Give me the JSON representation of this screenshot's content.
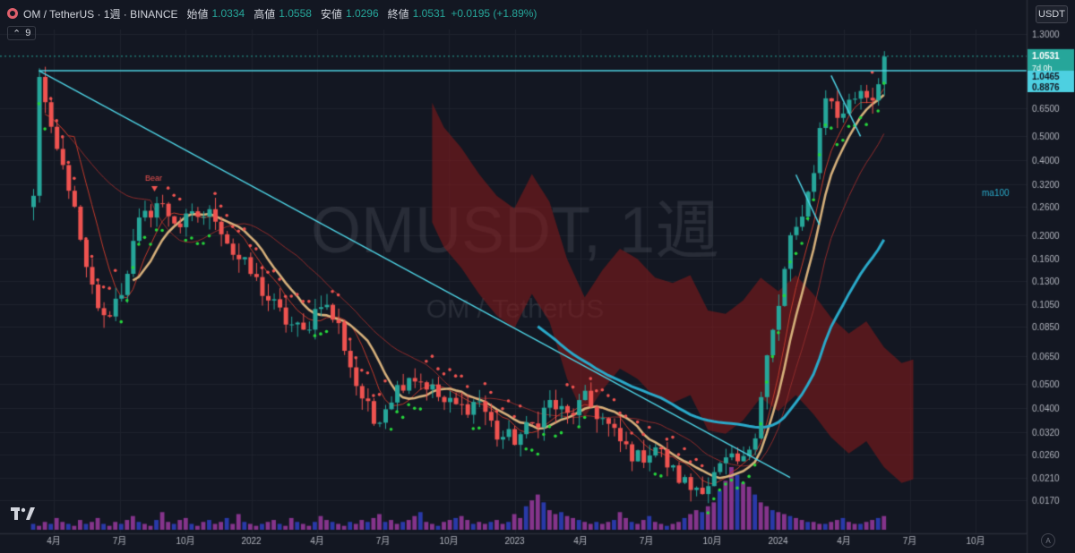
{
  "header": {
    "symbol": "OM / TetherUS · 1週 · BINANCE",
    "open_label": "始値",
    "open": "1.0334",
    "high_label": "高値",
    "high": "1.0558",
    "low_label": "安値",
    "low": "1.0296",
    "close_label": "終値",
    "close": "1.0531",
    "change": "+0.0195 (+1.89%)"
  },
  "indicator_count": "9",
  "currency": "USDT",
  "watermark": {
    "main": "OMUSDT, 1週",
    "sub": "OM / TetherUS"
  },
  "price_labels": {
    "last": "1.0531",
    "countdown": "7d 0h",
    "level1": "1.0465",
    "level2": "0.8876",
    "ma100": "ma100",
    "bear": "Bear"
  },
  "colors": {
    "up": "#26a69a",
    "down": "#ef5350",
    "trendline": "#4dd0e1",
    "psar_down": "#ef5350",
    "psar_up": "#26d53c",
    "cloud": "#8b1a1a",
    "ma_gold": "#d6b07b",
    "ma_teal": "#2aa9c9",
    "volume_blue": "#2e3fbf",
    "volume_purple": "#9a3a9e"
  },
  "chart_data": {
    "type": "candlestick",
    "title": "OMUSDT, 1週",
    "y_scale": "log",
    "ylim": [
      0.015,
      1.35
    ],
    "y_ticks": [
      "1.3000",
      "0.6500",
      "0.5000",
      "0.4000",
      "0.3200",
      "0.2600",
      "0.2000",
      "0.1600",
      "0.1300",
      "0.1050",
      "0.0850",
      "0.0650",
      "0.0500",
      "0.0400",
      "0.0320",
      "0.0260",
      "0.0210",
      "0.0170"
    ],
    "x_ticks": [
      "4月",
      "7月",
      "10月",
      "2022",
      "4月",
      "7月",
      "10月",
      "2023",
      "4月",
      "7月",
      "10月",
      "2024",
      "4月",
      "7月",
      "10月"
    ],
    "path": [
      [
        0,
        0.28
      ],
      [
        1,
        0.9
      ],
      [
        3,
        0.5
      ],
      [
        6,
        0.32
      ],
      [
        9,
        0.14
      ],
      [
        12,
        0.09
      ],
      [
        15,
        0.12
      ],
      [
        18,
        0.22
      ],
      [
        21,
        0.27
      ],
      [
        25,
        0.22
      ],
      [
        28,
        0.24
      ],
      [
        31,
        0.24
      ],
      [
        34,
        0.17
      ],
      [
        37,
        0.14
      ],
      [
        40,
        0.11
      ],
      [
        43,
        0.09
      ],
      [
        46,
        0.08
      ],
      [
        49,
        0.11
      ],
      [
        52,
        0.085
      ],
      [
        55,
        0.05
      ],
      [
        58,
        0.035
      ],
      [
        61,
        0.045
      ],
      [
        64,
        0.055
      ],
      [
        67,
        0.05
      ],
      [
        70,
        0.042
      ],
      [
        73,
        0.04
      ],
      [
        76,
        0.043
      ],
      [
        79,
        0.031
      ],
      [
        82,
        0.03
      ],
      [
        85,
        0.034
      ],
      [
        88,
        0.042
      ],
      [
        91,
        0.037
      ],
      [
        94,
        0.043
      ],
      [
        97,
        0.036
      ],
      [
        100,
        0.029
      ],
      [
        103,
        0.025
      ],
      [
        106,
        0.028
      ],
      [
        109,
        0.022
      ],
      [
        112,
        0.019
      ],
      [
        115,
        0.02
      ],
      [
        118,
        0.024
      ],
      [
        121,
        0.024
      ],
      [
        123,
        0.033
      ],
      [
        125,
        0.065
      ],
      [
        127,
        0.1
      ],
      [
        129,
        0.2
      ],
      [
        131,
        0.22
      ],
      [
        133,
        0.38
      ],
      [
        135,
        0.75
      ],
      [
        137,
        0.6
      ],
      [
        139,
        0.68
      ],
      [
        141,
        0.78
      ],
      [
        143,
        0.72
      ],
      [
        145,
        1.05
      ]
    ],
    "volume": [
      3,
      2,
      4,
      3,
      6,
      4,
      3,
      2,
      5,
      3,
      4,
      6,
      3,
      2,
      4,
      3,
      5,
      7,
      4,
      3,
      2,
      5,
      9,
      4,
      3,
      5,
      6,
      3,
      2,
      4,
      5,
      3,
      4,
      6,
      3,
      8,
      4,
      3,
      2,
      3,
      4,
      5,
      3,
      2,
      6,
      4,
      3,
      2,
      4,
      7,
      5,
      4,
      3,
      2,
      4,
      3,
      5,
      4,
      6,
      8,
      4,
      5,
      3,
      4,
      5,
      7,
      9,
      4,
      3,
      2,
      4,
      5,
      6,
      7,
      5,
      3,
      4,
      3,
      4,
      5,
      3,
      4,
      8,
      6,
      12,
      15,
      18,
      14,
      10,
      8,
      9,
      7,
      6,
      5,
      4,
      3,
      4,
      3,
      4,
      5,
      9,
      6,
      4,
      3,
      5,
      7,
      4,
      3,
      2,
      3,
      4,
      6,
      8,
      10,
      9,
      12,
      14,
      20,
      25,
      32,
      28,
      24,
      22,
      18,
      14,
      12,
      10,
      9,
      8,
      7,
      6,
      5,
      4,
      4,
      3,
      3,
      4,
      5,
      6,
      4,
      3,
      3,
      4,
      5,
      6,
      7
    ],
    "series": [
      {
        "name": "ma100",
        "role": "moving-average"
      }
    ],
    "trendline": {
      "from": [
        1,
        0.92
      ],
      "to": [
        129,
        0.021
      ]
    },
    "horizontal_levels": [
      0.92,
      1.0531
    ],
    "ichimoku_cloud": {
      "x_start": 68,
      "x_end": 150
    },
    "psar": true
  }
}
